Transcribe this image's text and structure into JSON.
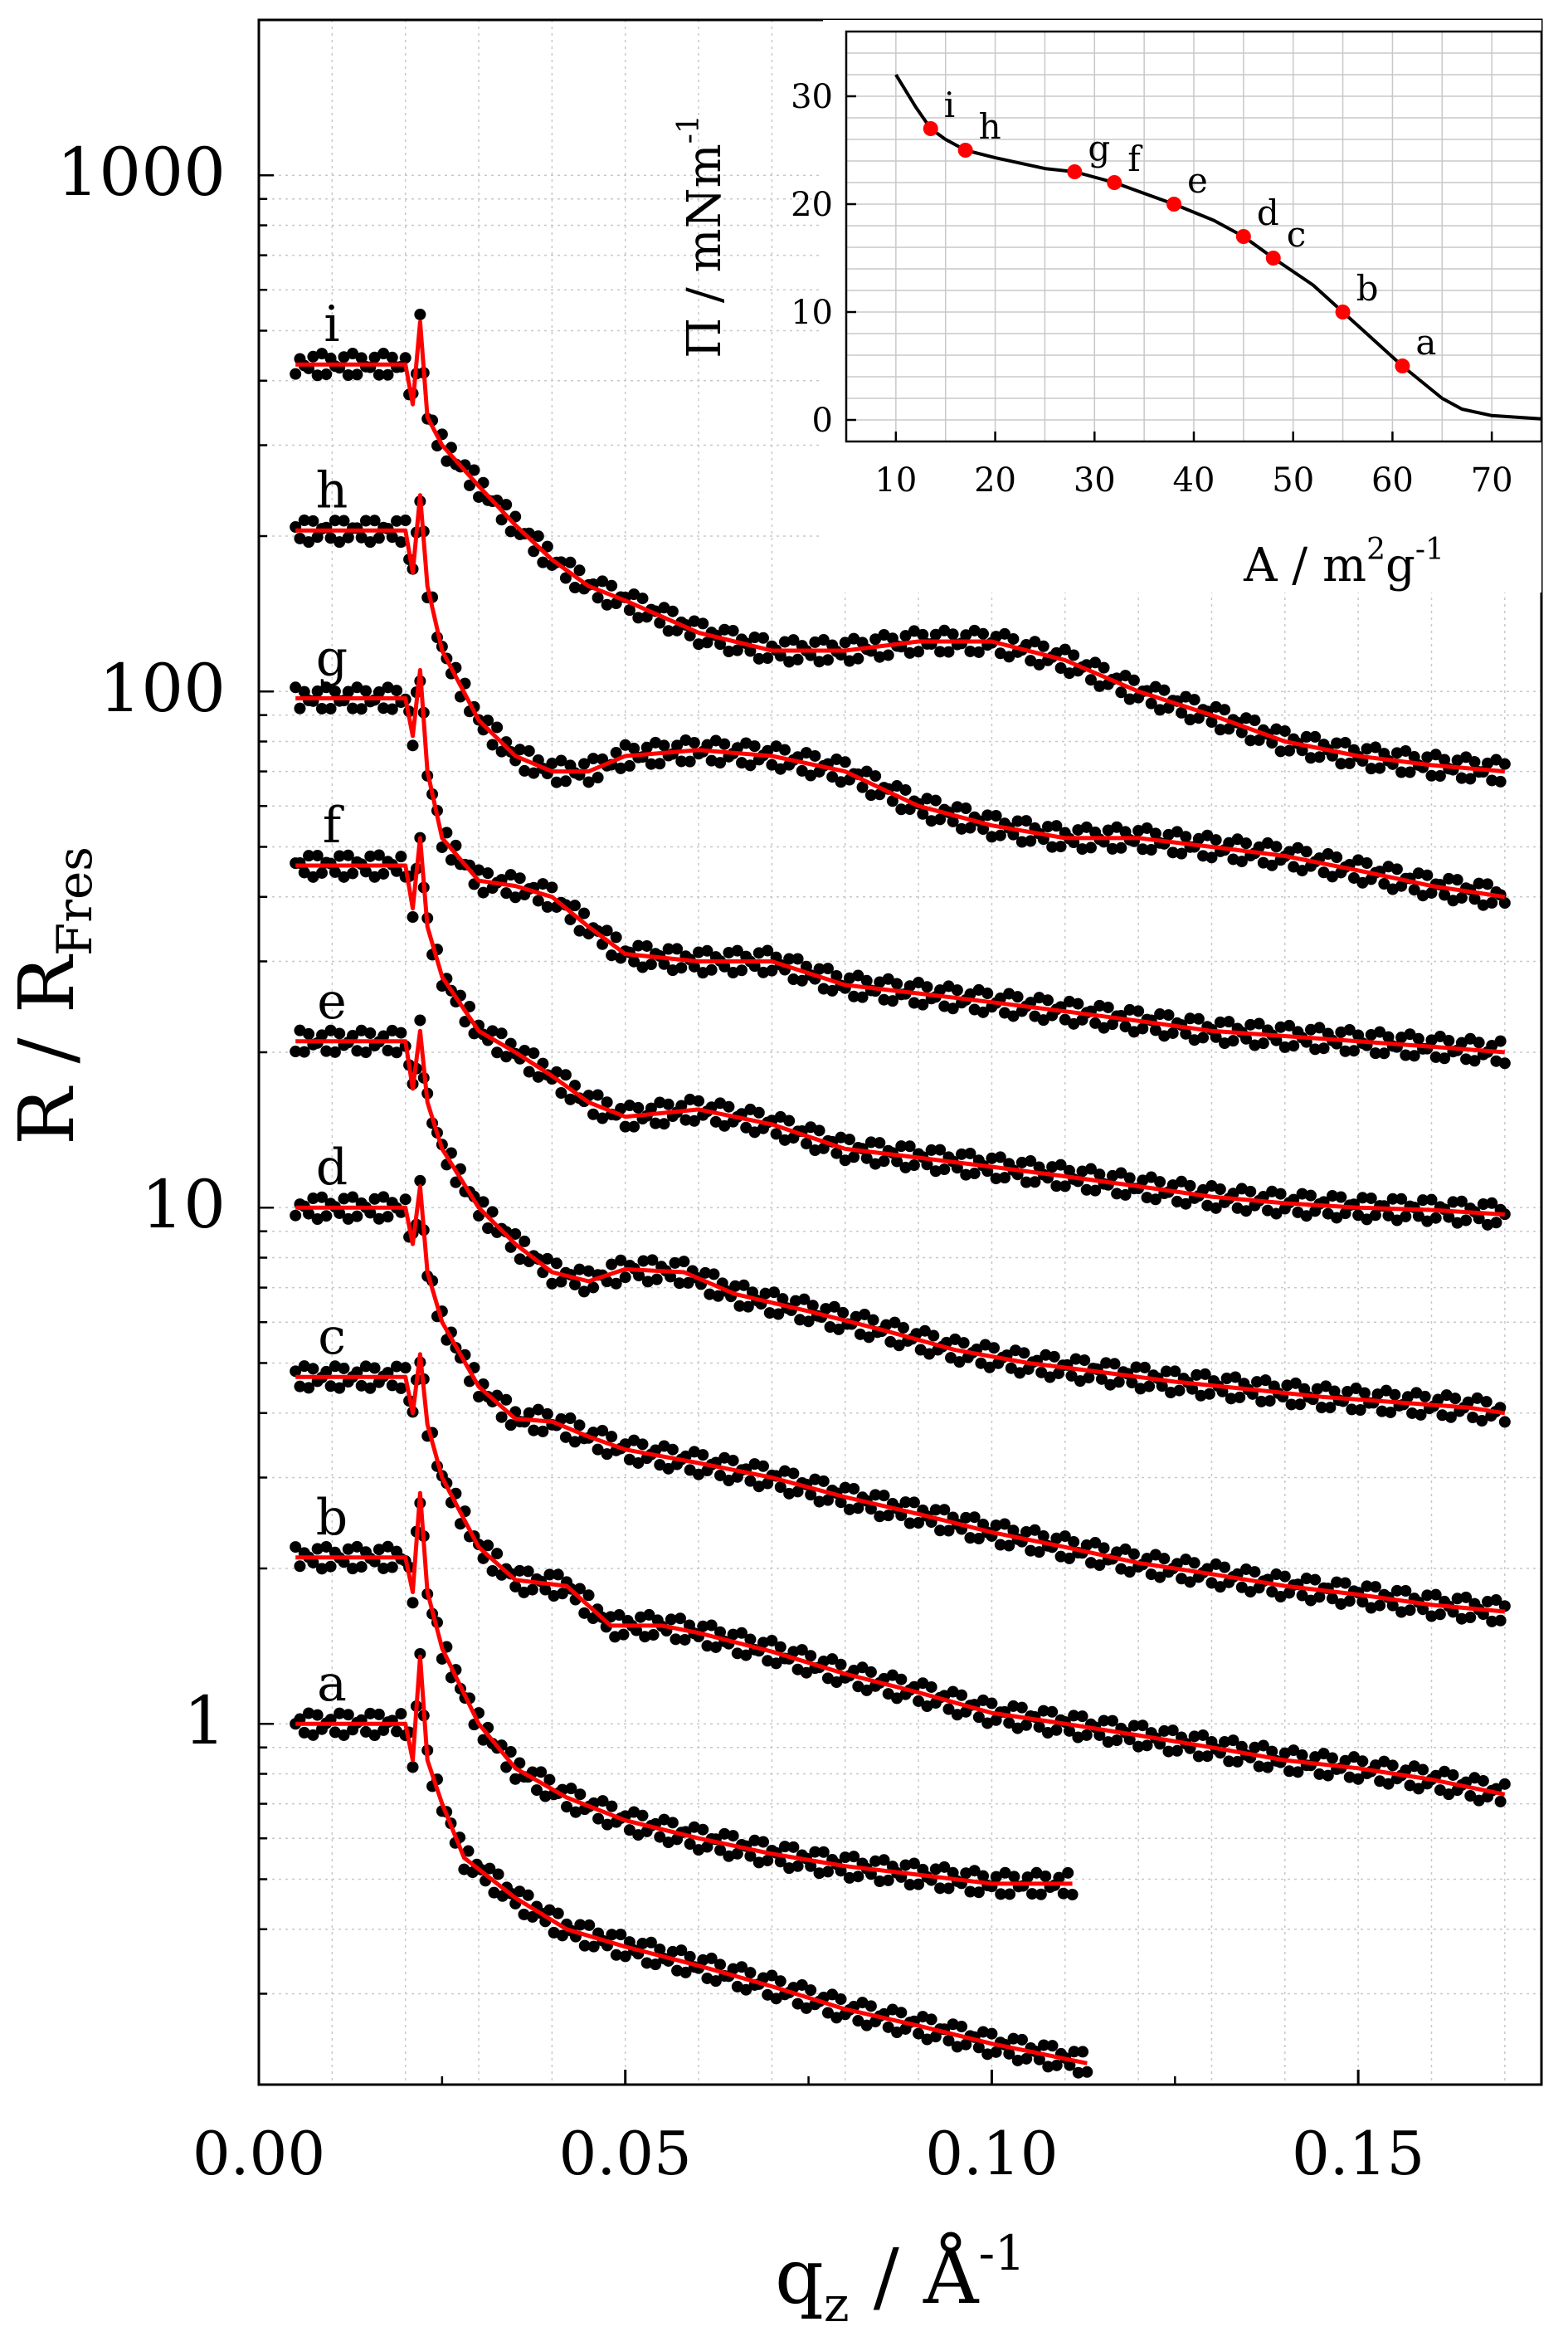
{
  "colors": {
    "data": "#000000",
    "fit": "#ff0000",
    "grid": "#c8c8c8",
    "axis": "#000000"
  },
  "chart_data": [
    {
      "type": "line",
      "title": "",
      "xlabel": "q",
      "xlabel_sub": "z",
      "xlabel_unit": " / Å",
      "xlabel_sup": "-1",
      "ylabel": "R / R",
      "ylabel_sub": "Fres",
      "xlim": [
        0.0,
        0.175
      ],
      "ylim": [
        0.2,
        2000
      ],
      "yscale": "log",
      "grid": true,
      "xticks": [
        0.0,
        0.05,
        0.1,
        0.15
      ],
      "xtick_labels": [
        "0.00",
        "0.05",
        "0.10",
        "0.15"
      ],
      "yticks": [
        1,
        10,
        100,
        1000
      ],
      "ytick_labels": [
        "1",
        "10",
        "100",
        "1000"
      ],
      "legend": "curve letters a–i placed left of each trace",
      "series_note": "each curve: black measured points with red fit line, curves offset vertically",
      "series": [
        {
          "name": "a",
          "label": "a",
          "q": [
            0.005,
            0.02,
            0.021,
            0.022,
            0.023,
            0.025,
            0.028,
            0.035,
            0.042,
            0.05,
            0.06,
            0.07,
            0.08,
            0.09,
            0.1,
            0.113
          ],
          "r": [
            1.0,
            1.0,
            0.85,
            1.35,
            0.85,
            0.7,
            0.55,
            0.46,
            0.4,
            0.37,
            0.34,
            0.31,
            0.28,
            0.26,
            0.24,
            0.22
          ]
        },
        {
          "name": "b",
          "label": "b",
          "q": [
            0.005,
            0.02,
            0.021,
            0.022,
            0.023,
            0.025,
            0.03,
            0.035,
            0.042,
            0.05,
            0.06,
            0.07,
            0.08,
            0.09,
            0.1,
            0.111
          ],
          "r": [
            2.1,
            2.1,
            1.8,
            2.8,
            1.8,
            1.4,
            1.0,
            0.82,
            0.72,
            0.65,
            0.6,
            0.56,
            0.53,
            0.51,
            0.49,
            0.49
          ]
        },
        {
          "name": "c",
          "label": "c",
          "q": [
            0.005,
            0.02,
            0.021,
            0.022,
            0.023,
            0.025,
            0.03,
            0.035,
            0.042,
            0.048,
            0.055,
            0.06,
            0.07,
            0.08,
            0.09,
            0.1,
            0.11,
            0.12,
            0.13,
            0.14,
            0.15,
            0.16,
            0.17
          ],
          "r": [
            4.7,
            4.7,
            4.0,
            5.2,
            3.8,
            3.0,
            2.2,
            1.9,
            1.85,
            1.55,
            1.55,
            1.5,
            1.38,
            1.25,
            1.15,
            1.05,
            1.0,
            0.95,
            0.9,
            0.85,
            0.82,
            0.78,
            0.73
          ]
        },
        {
          "name": "d",
          "label": "d",
          "q": [
            0.005,
            0.02,
            0.021,
            0.022,
            0.023,
            0.025,
            0.03,
            0.035,
            0.04,
            0.045,
            0.05,
            0.06,
            0.07,
            0.08,
            0.09,
            0.1,
            0.11,
            0.12,
            0.13,
            0.14,
            0.15,
            0.16,
            0.17
          ],
          "r": [
            10,
            10,
            8.5,
            11,
            7.5,
            6.0,
            4.5,
            3.9,
            3.85,
            3.6,
            3.4,
            3.2,
            3.0,
            2.75,
            2.55,
            2.35,
            2.2,
            2.05,
            1.95,
            1.85,
            1.78,
            1.7,
            1.65
          ]
        },
        {
          "name": "e",
          "label": "e",
          "q": [
            0.005,
            0.02,
            0.021,
            0.022,
            0.023,
            0.025,
            0.03,
            0.035,
            0.04,
            0.045,
            0.05,
            0.058,
            0.065,
            0.075,
            0.085,
            0.095,
            0.105,
            0.115,
            0.125,
            0.135,
            0.145,
            0.155,
            0.165,
            0.17
          ],
          "r": [
            21,
            21,
            17,
            22,
            16,
            13,
            10,
            8.5,
            7.5,
            7.2,
            7.6,
            7.5,
            6.8,
            6.3,
            5.8,
            5.3,
            5.0,
            4.8,
            4.6,
            4.45,
            4.3,
            4.2,
            4.1,
            4.0
          ]
        },
        {
          "name": "f",
          "label": "f",
          "q": [
            0.005,
            0.02,
            0.021,
            0.022,
            0.023,
            0.025,
            0.03,
            0.035,
            0.04,
            0.045,
            0.05,
            0.06,
            0.07,
            0.08,
            0.09,
            0.1,
            0.11,
            0.12,
            0.13,
            0.14,
            0.15,
            0.16,
            0.17
          ],
          "r": [
            46,
            46,
            38,
            52,
            35,
            28,
            22,
            20,
            18,
            16,
            15,
            15.5,
            14.5,
            13,
            12.5,
            12,
            11.5,
            11,
            10.5,
            10.2,
            10,
            9.9,
            9.7
          ]
        },
        {
          "name": "g",
          "label": "g",
          "q": [
            0.005,
            0.02,
            0.021,
            0.022,
            0.023,
            0.025,
            0.03,
            0.035,
            0.04,
            0.045,
            0.05,
            0.06,
            0.07,
            0.08,
            0.09,
            0.1,
            0.11,
            0.12,
            0.13,
            0.14,
            0.15,
            0.16,
            0.17
          ],
          "r": [
            97,
            97,
            82,
            110,
            70,
            52,
            43,
            42,
            40,
            35,
            31,
            30,
            30,
            27,
            26,
            25,
            24,
            23,
            22,
            21.5,
            21,
            20.5,
            20
          ]
        },
        {
          "name": "h",
          "label": "h",
          "q": [
            0.005,
            0.02,
            0.021,
            0.022,
            0.023,
            0.025,
            0.03,
            0.035,
            0.04,
            0.045,
            0.05,
            0.06,
            0.07,
            0.08,
            0.09,
            0.1,
            0.11,
            0.12,
            0.13,
            0.14,
            0.15,
            0.16,
            0.17
          ],
          "r": [
            205,
            205,
            170,
            240,
            160,
            120,
            88,
            75,
            70,
            70,
            75,
            77,
            75,
            70,
            60,
            55,
            52,
            52,
            50,
            48,
            45,
            42,
            40
          ]
        },
        {
          "name": "i",
          "label": "i",
          "q": [
            0.005,
            0.02,
            0.021,
            0.022,
            0.023,
            0.025,
            0.03,
            0.035,
            0.04,
            0.045,
            0.05,
            0.06,
            0.07,
            0.08,
            0.09,
            0.1,
            0.11,
            0.12,
            0.13,
            0.14,
            0.15,
            0.16,
            0.17
          ],
          "r": [
            430,
            430,
            360,
            520,
            340,
            300,
            250,
            210,
            180,
            160,
            150,
            130,
            120,
            120,
            125,
            125,
            115,
            100,
            90,
            80,
            75,
            72,
            70
          ]
        }
      ]
    },
    {
      "type": "line",
      "title": "",
      "xlabel": "A / m",
      "xlabel_sup": "2",
      "xlabel_tail": "g",
      "xlabel_tail_sup": "-1",
      "ylabel": "Π / mNm",
      "ylabel_sup": "-1",
      "xlim": [
        5,
        75
      ],
      "ylim": [
        -2,
        36
      ],
      "grid": true,
      "xticks": [
        10,
        20,
        30,
        40,
        50,
        60,
        70
      ],
      "xtick_labels": [
        "10",
        "20",
        "30",
        "40",
        "50",
        "60",
        "70"
      ],
      "yticks": [
        0,
        10,
        20,
        30
      ],
      "ytick_labels": [
        "0",
        "10",
        "20",
        "30"
      ],
      "legend": "inset, top-right",
      "isotherm": {
        "A": [
          10,
          12,
          13.5,
          15,
          17,
          20,
          25,
          28,
          32,
          38,
          42,
          45,
          48,
          52,
          55,
          58,
          61,
          63,
          65,
          67,
          70,
          75
        ],
        "Pi": [
          32,
          29,
          27,
          26,
          25,
          24.3,
          23.3,
          23,
          22,
          20,
          18.5,
          17,
          15,
          12.5,
          10,
          7.5,
          5,
          3.5,
          2,
          1,
          0.4,
          0.1
        ]
      },
      "marked_points": [
        {
          "label": "a",
          "A": 61,
          "Pi": 5
        },
        {
          "label": "b",
          "A": 55,
          "Pi": 10
        },
        {
          "label": "c",
          "A": 48,
          "Pi": 15
        },
        {
          "label": "d",
          "A": 45,
          "Pi": 17
        },
        {
          "label": "e",
          "A": 38,
          "Pi": 20
        },
        {
          "label": "f",
          "A": 32,
          "Pi": 22
        },
        {
          "label": "g",
          "A": 28,
          "Pi": 23
        },
        {
          "label": "h",
          "A": 17,
          "Pi": 25
        },
        {
          "label": "i",
          "A": 13.5,
          "Pi": 27
        }
      ]
    }
  ]
}
